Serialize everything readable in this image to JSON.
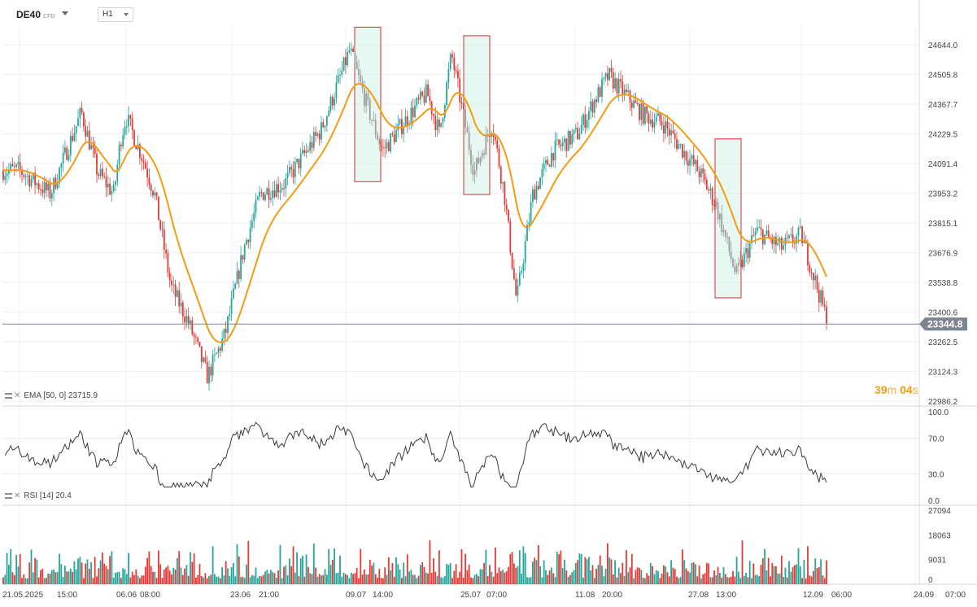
{
  "header": {
    "symbol": "DE40",
    "symbol_tag": "CFD",
    "timeframe": "H1"
  },
  "price_axis": {
    "labels": [
      "24644.0",
      "24505.8",
      "24367.7",
      "24229.5",
      "24091.4",
      "23953.2",
      "23815.1",
      "23676.9",
      "23538.8",
      "23400.6",
      "23262.5",
      "23124.3",
      "22986.2"
    ],
    "current_price": "23344.8"
  },
  "rsi_axis": {
    "labels": [
      "100.0",
      "70.0",
      "30.0",
      "0.0"
    ]
  },
  "volume_axis": {
    "labels": [
      "27094",
      "18063",
      "9031",
      "0"
    ]
  },
  "time_axis": {
    "labels": [
      "21.05.2025",
      "15:00",
      "06.06",
      "08:00",
      "23.06",
      "21:00",
      "09.07",
      "14:00",
      "25.07",
      "07:00",
      "11.08",
      "20:00",
      "27.08",
      "13:00",
      "12.09",
      "06:00",
      "24.09",
      "07:00"
    ]
  },
  "indicators": {
    "ema": {
      "name": "EMA",
      "params": "[50, 0]",
      "value": "23715.9"
    },
    "rsi": {
      "name": "RSI",
      "params": "[14]",
      "value": "20.4"
    }
  },
  "timer": {
    "minutes": "39",
    "min_unit": "m",
    "seconds": "04",
    "sec_unit": "s"
  },
  "colors": {
    "up": "#26a69a",
    "down": "#e53935",
    "ema": "#f39c12",
    "rsi": "#3a3a3a",
    "price_line": "#7d8590",
    "price_tag": "#7d8590",
    "box_fill": "#c8f0df",
    "box_stroke": "#d32f2f"
  },
  "chart_data": [
    {
      "type": "candlestick",
      "symbol": "DE40",
      "timeframe": "H1",
      "y_range": [
        22986.2,
        24644.0
      ],
      "x_range": [
        "21.05.2025",
        "12.09"
      ],
      "current_price": 23344.8,
      "approximate_close_path": [
        [
          "21.05.2025",
          24060
        ],
        [
          "23.05",
          23950
        ],
        [
          "27.05",
          24330
        ],
        [
          "29.05",
          24050
        ],
        [
          "02.06",
          23950
        ],
        [
          "04.06",
          24200
        ],
        [
          "06.06",
          24310
        ],
        [
          "10.06",
          24120
        ],
        [
          "12.06",
          23950
        ],
        [
          "16.06",
          23520
        ],
        [
          "18.06",
          23350
        ],
        [
          "20.06",
          23100
        ],
        [
          "23.06",
          23300
        ],
        [
          "25.06",
          23700
        ],
        [
          "27.06",
          23950
        ],
        [
          "01.07",
          24000
        ],
        [
          "03.07",
          24250
        ],
        [
          "07.07",
          24620
        ],
        [
          "09.07",
          24400
        ],
        [
          "11.07",
          24150
        ],
        [
          "15.07",
          24350
        ],
        [
          "17.07",
          24420
        ],
        [
          "21.07",
          24230
        ],
        [
          "23.07",
          24600
        ],
        [
          "25.07",
          24050
        ],
        [
          "29.07",
          24280
        ],
        [
          "31.07",
          23950
        ],
        [
          "04.08",
          23450
        ],
        [
          "06.08",
          23950
        ],
        [
          "08.08",
          24150
        ],
        [
          "11.08",
          24230
        ],
        [
          "13.08",
          24380
        ],
        [
          "15.08",
          24500
        ],
        [
          "19.08",
          24320
        ],
        [
          "21.08",
          24280
        ],
        [
          "25.08",
          24200
        ],
        [
          "27.08",
          24050
        ],
        [
          "29.08",
          23900
        ],
        [
          "02.09",
          23570
        ],
        [
          "04.09",
          23780
        ],
        [
          "08.09",
          23700
        ],
        [
          "10.09",
          23760
        ],
        [
          "12.09",
          23344.8
        ]
      ],
      "highlight_boxes": [
        {
          "from": "08.07",
          "to": "10.07",
          "high": 24620,
          "low": 24060
        },
        {
          "from": "24.07",
          "to": "26.07",
          "high": 24580,
          "low": 24000
        },
        {
          "from": "01.09",
          "to": "03.09",
          "high": 24100,
          "low": 23520
        }
      ]
    },
    {
      "type": "line",
      "name": "EMA",
      "params": "[50, 0]",
      "last_value": 23715.9
    },
    {
      "type": "line",
      "name": "RSI",
      "params": "[14]",
      "last_value": 20.4,
      "levels": [
        70,
        30
      ],
      "y_range": [
        0,
        100
      ]
    },
    {
      "type": "bar",
      "name": "Volume",
      "y_range": [
        0,
        27094
      ]
    }
  ]
}
